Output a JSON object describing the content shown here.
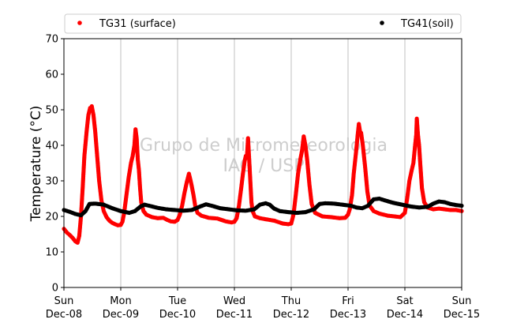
{
  "chart_data": {
    "type": "scatter",
    "title": "",
    "xlabel": "",
    "ylabel": "Temperature (°C)",
    "ylim": [
      0,
      70
    ],
    "yticks": [
      0,
      10,
      20,
      30,
      40,
      50,
      60,
      70
    ],
    "xlim": [
      0,
      7
    ],
    "x_unit": "days from Sun Dec-08 00:00",
    "x_ticks": [
      {
        "x": 0,
        "day": "Sun",
        "date": "Dec-08"
      },
      {
        "x": 1,
        "day": "Mon",
        "date": "Dec-09"
      },
      {
        "x": 2,
        "day": "Tue",
        "date": "Dec-10"
      },
      {
        "x": 3,
        "day": "Wed",
        "date": "Dec-11"
      },
      {
        "x": 4,
        "day": "Thu",
        "date": "Dec-12"
      },
      {
        "x": 5,
        "day": "Fri",
        "date": "Dec-13"
      },
      {
        "x": 6,
        "day": "Sat",
        "date": "Dec-14"
      },
      {
        "x": 7,
        "day": "Sun",
        "date": "Dec-15"
      }
    ],
    "grid": "vertical lines at day ticks",
    "legend_position": "top, above plot",
    "watermark": [
      "Grupo de Micrometeorologia",
      "IAG / USP"
    ],
    "series": [
      {
        "name": "TG31 (surface)",
        "color": "#ff0000",
        "points": [
          [
            0.0,
            16.5
          ],
          [
            0.05,
            15.5
          ],
          [
            0.1,
            14.8
          ],
          [
            0.15,
            14.0
          ],
          [
            0.2,
            13.0
          ],
          [
            0.24,
            12.6
          ],
          [
            0.27,
            14.5
          ],
          [
            0.3,
            20.0
          ],
          [
            0.33,
            28.0
          ],
          [
            0.36,
            37.0
          ],
          [
            0.4,
            44.0
          ],
          [
            0.43,
            48.5
          ],
          [
            0.46,
            50.5
          ],
          [
            0.49,
            51.0
          ],
          [
            0.52,
            48.5
          ],
          [
            0.55,
            44.0
          ],
          [
            0.58,
            38.0
          ],
          [
            0.62,
            30.0
          ],
          [
            0.66,
            24.5
          ],
          [
            0.7,
            21.5
          ],
          [
            0.75,
            19.8
          ],
          [
            0.8,
            18.8
          ],
          [
            0.85,
            18.2
          ],
          [
            0.9,
            17.8
          ],
          [
            0.95,
            17.5
          ],
          [
            1.0,
            17.6
          ],
          [
            1.03,
            18.5
          ],
          [
            1.06,
            21.0
          ],
          [
            1.1,
            26.0
          ],
          [
            1.14,
            31.0
          ],
          [
            1.18,
            35.0
          ],
          [
            1.21,
            37.0
          ],
          [
            1.24,
            40.0
          ],
          [
            1.26,
            44.5
          ],
          [
            1.28,
            42.0
          ],
          [
            1.3,
            36.0
          ],
          [
            1.32,
            33.0
          ],
          [
            1.34,
            28.0
          ],
          [
            1.36,
            24.0
          ],
          [
            1.4,
            21.5
          ],
          [
            1.45,
            20.5
          ],
          [
            1.55,
            19.8
          ],
          [
            1.65,
            19.5
          ],
          [
            1.75,
            19.6
          ],
          [
            1.82,
            19.0
          ],
          [
            1.88,
            18.6
          ],
          [
            1.95,
            18.5
          ],
          [
            2.0,
            19.0
          ],
          [
            2.04,
            20.5
          ],
          [
            2.08,
            23.0
          ],
          [
            2.12,
            26.5
          ],
          [
            2.16,
            29.5
          ],
          [
            2.2,
            32.0
          ],
          [
            2.23,
            30.0
          ],
          [
            2.25,
            28.5
          ],
          [
            2.28,
            26.0
          ],
          [
            2.31,
            23.0
          ],
          [
            2.35,
            21.0
          ],
          [
            2.42,
            20.2
          ],
          [
            2.55,
            19.6
          ],
          [
            2.7,
            19.4
          ],
          [
            2.85,
            18.6
          ],
          [
            2.95,
            18.3
          ],
          [
            3.0,
            18.5
          ],
          [
            3.04,
            19.5
          ],
          [
            3.08,
            23.0
          ],
          [
            3.12,
            28.0
          ],
          [
            3.15,
            32.0
          ],
          [
            3.18,
            35.5
          ],
          [
            3.2,
            37.0
          ],
          [
            3.22,
            36.5
          ],
          [
            3.24,
            42.0
          ],
          [
            3.26,
            36.0
          ],
          [
            3.28,
            30.0
          ],
          [
            3.3,
            24.0
          ],
          [
            3.32,
            21.5
          ],
          [
            3.36,
            20.0
          ],
          [
            3.45,
            19.5
          ],
          [
            3.55,
            19.2
          ],
          [
            3.7,
            18.8
          ],
          [
            3.85,
            18.0
          ],
          [
            3.95,
            17.8
          ],
          [
            4.0,
            18.0
          ],
          [
            4.04,
            20.5
          ],
          [
            4.08,
            26.0
          ],
          [
            4.12,
            32.0
          ],
          [
            4.16,
            36.0
          ],
          [
            4.19,
            38.5
          ],
          [
            4.22,
            42.5
          ],
          [
            4.25,
            40.0
          ],
          [
            4.28,
            36.0
          ],
          [
            4.32,
            29.0
          ],
          [
            4.36,
            23.5
          ],
          [
            4.42,
            21.0
          ],
          [
            4.55,
            20.0
          ],
          [
            4.7,
            19.8
          ],
          [
            4.85,
            19.5
          ],
          [
            4.95,
            19.6
          ],
          [
            5.0,
            20.5
          ],
          [
            5.03,
            22.0
          ],
          [
            5.07,
            26.0
          ],
          [
            5.1,
            32.0
          ],
          [
            5.14,
            38.0
          ],
          [
            5.17,
            43.0
          ],
          [
            5.19,
            46.0
          ],
          [
            5.21,
            44.0
          ],
          [
            5.23,
            43.5
          ],
          [
            5.26,
            40.0
          ],
          [
            5.3,
            34.0
          ],
          [
            5.34,
            27.0
          ],
          [
            5.38,
            23.0
          ],
          [
            5.45,
            21.5
          ],
          [
            5.55,
            20.8
          ],
          [
            5.7,
            20.2
          ],
          [
            5.82,
            20.0
          ],
          [
            5.92,
            19.8
          ],
          [
            6.0,
            21.0
          ],
          [
            6.04,
            25.0
          ],
          [
            6.08,
            30.0
          ],
          [
            6.12,
            33.0
          ],
          [
            6.15,
            35.0
          ],
          [
            6.18,
            40.0
          ],
          [
            6.2,
            43.0
          ],
          [
            6.21,
            47.5
          ],
          [
            6.23,
            43.0
          ],
          [
            6.25,
            40.0
          ],
          [
            6.27,
            35.0
          ],
          [
            6.3,
            28.0
          ],
          [
            6.34,
            24.0
          ],
          [
            6.4,
            22.5
          ],
          [
            6.5,
            22.0
          ],
          [
            6.6,
            22.2
          ],
          [
            6.7,
            22.0
          ],
          [
            6.8,
            21.8
          ],
          [
            6.9,
            21.8
          ],
          [
            7.0,
            21.5
          ]
        ]
      },
      {
        "name": "TG41(soil)",
        "color": "#000000",
        "points": [
          [
            0.0,
            21.8
          ],
          [
            0.1,
            21.3
          ],
          [
            0.2,
            20.7
          ],
          [
            0.3,
            20.3
          ],
          [
            0.38,
            21.5
          ],
          [
            0.45,
            23.5
          ],
          [
            0.55,
            23.6
          ],
          [
            0.7,
            23.3
          ],
          [
            0.85,
            22.3
          ],
          [
            1.0,
            21.5
          ],
          [
            1.15,
            21.0
          ],
          [
            1.25,
            21.5
          ],
          [
            1.35,
            22.8
          ],
          [
            1.42,
            23.3
          ],
          [
            1.5,
            23.0
          ],
          [
            1.65,
            22.4
          ],
          [
            1.8,
            22.0
          ],
          [
            1.95,
            21.8
          ],
          [
            2.1,
            21.6
          ],
          [
            2.25,
            21.8
          ],
          [
            2.4,
            22.8
          ],
          [
            2.5,
            23.4
          ],
          [
            2.6,
            23.0
          ],
          [
            2.75,
            22.3
          ],
          [
            2.9,
            22.0
          ],
          [
            3.05,
            21.7
          ],
          [
            3.2,
            21.6
          ],
          [
            3.35,
            22.0
          ],
          [
            3.45,
            23.3
          ],
          [
            3.55,
            23.7
          ],
          [
            3.62,
            23.3
          ],
          [
            3.7,
            22.2
          ],
          [
            3.8,
            21.5
          ],
          [
            3.95,
            21.2
          ],
          [
            4.1,
            21.0
          ],
          [
            4.25,
            21.2
          ],
          [
            4.4,
            22.0
          ],
          [
            4.5,
            23.5
          ],
          [
            4.6,
            23.7
          ],
          [
            4.75,
            23.6
          ],
          [
            4.9,
            23.3
          ],
          [
            5.05,
            23.0
          ],
          [
            5.15,
            22.5
          ],
          [
            5.25,
            22.3
          ],
          [
            5.35,
            23.0
          ],
          [
            5.45,
            24.8
          ],
          [
            5.55,
            25.0
          ],
          [
            5.65,
            24.5
          ],
          [
            5.8,
            23.8
          ],
          [
            5.95,
            23.3
          ],
          [
            6.1,
            22.8
          ],
          [
            6.25,
            22.5
          ],
          [
            6.4,
            22.7
          ],
          [
            6.5,
            23.6
          ],
          [
            6.6,
            24.2
          ],
          [
            6.7,
            24.0
          ],
          [
            6.8,
            23.5
          ],
          [
            6.9,
            23.2
          ],
          [
            7.0,
            23.0
          ]
        ]
      }
    ]
  }
}
